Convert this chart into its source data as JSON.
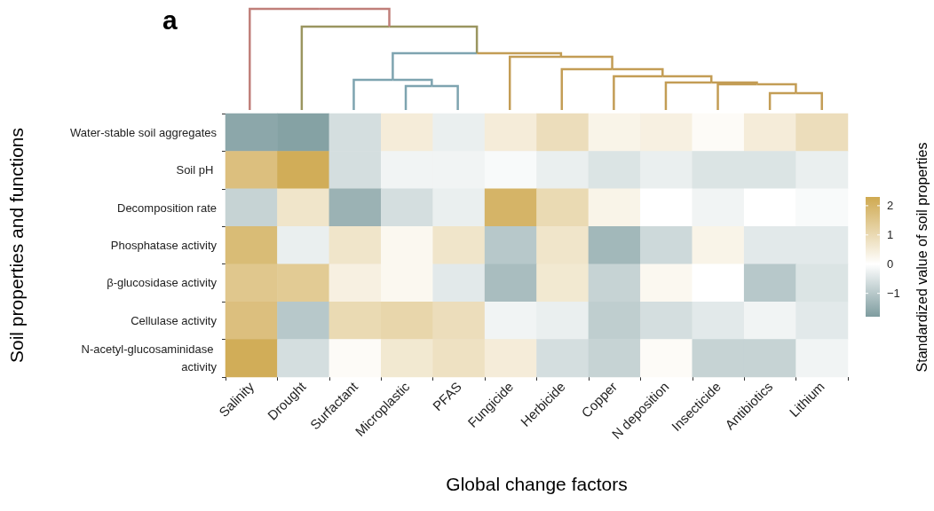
{
  "chart_data": {
    "type": "heatmap",
    "title": "a",
    "xlabel": "Global change factors",
    "ylabel": "Soil properties and functions",
    "clabel": "Standardized value of soil properties",
    "categories": [
      "Salinity",
      "Drought",
      "Surfactant",
      "Microplastic",
      "PFAS",
      "Fungicide",
      "Herbicide",
      "Copper",
      "N deposition",
      "Insecticide",
      "Antibiotics",
      "Lithium"
    ],
    "y_categories": [
      "Water-stable soil aggregates",
      "Soil pH ",
      "Decomposition rate",
      "Phosphatase activity",
      "β-glucosidase activity",
      "Cellulase activity",
      "N-acetyl-glucosaminidase activity"
    ],
    "cells": [
      [
        -1.6,
        -1.7,
        -0.6,
        0.5,
        -0.3,
        0.5,
        0.9,
        0.3,
        0.4,
        0.1,
        0.5,
        0.9
      ],
      [
        1.7,
        2.2,
        -0.6,
        -0.2,
        -0.2,
        -0.1,
        -0.3,
        -0.5,
        -0.3,
        -0.5,
        -0.5,
        -0.3
      ],
      [
        -0.8,
        0.7,
        -1.4,
        -0.6,
        -0.3,
        2.0,
        1.0,
        0.3,
        0.0,
        -0.2,
        0.0,
        -0.1
      ],
      [
        1.8,
        -0.3,
        0.7,
        0.2,
        0.7,
        -1.0,
        0.7,
        -1.3,
        -0.7,
        0.3,
        -0.4,
        -0.4
      ],
      [
        1.5,
        1.4,
        0.4,
        0.2,
        -0.4,
        -1.2,
        0.6,
        -0.8,
        0.2,
        0.0,
        -1.0,
        -0.5
      ],
      [
        1.7,
        -1.0,
        1.0,
        1.1,
        0.9,
        -0.2,
        -0.3,
        -0.9,
        -0.6,
        -0.4,
        -0.2,
        -0.4
      ],
      [
        2.2,
        -0.6,
        0.1,
        0.6,
        0.8,
        0.5,
        -0.6,
        -0.8,
        0.1,
        -0.8,
        -0.8,
        -0.2
      ]
    ],
    "clim": [
      -1.8,
      2.3
    ],
    "cticks": [
      {
        "value": -1,
        "label": "−1"
      },
      0,
      1,
      2
    ],
    "grid": false
  }
}
